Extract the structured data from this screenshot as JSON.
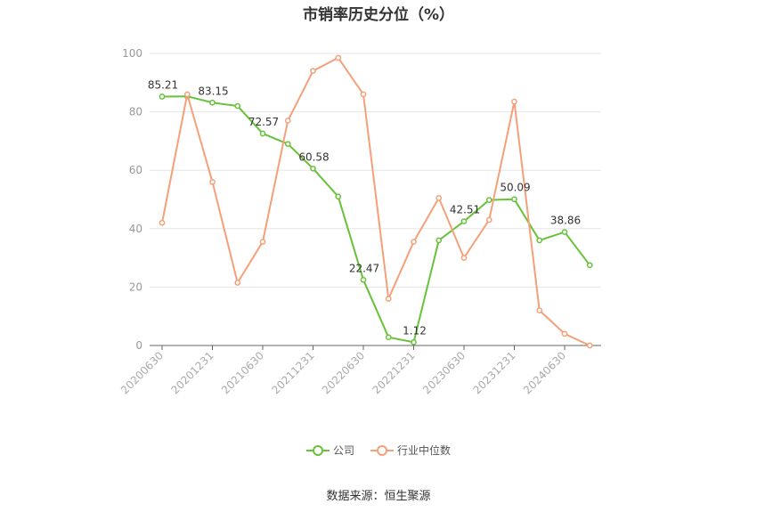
{
  "chart_data": {
    "type": "line",
    "title": "市销率历史分位（%）",
    "xlabel": "",
    "ylabel": "",
    "ylim": [
      0,
      100
    ],
    "yticks": [
      0,
      20,
      40,
      60,
      80,
      100
    ],
    "x": [
      "20200630",
      "20200930",
      "20201231",
      "20210331",
      "20210630",
      "20210930",
      "20211231",
      "20220331",
      "20220630",
      "20220930",
      "20221231",
      "20230331",
      "20230630",
      "20230930",
      "20231231",
      "20240331",
      "20240630",
      "20240930"
    ],
    "xtick_labels": [
      "20200630",
      "20201231",
      "20210630",
      "20211231",
      "20220630",
      "20221231",
      "20230630",
      "20231231",
      "20240630"
    ],
    "grid": true,
    "legend_position": "bottom",
    "series": [
      {
        "name": "公司",
        "color": "#67c23a",
        "values": [
          85.21,
          85.3,
          83.15,
          82.0,
          72.57,
          69.0,
          60.58,
          51.0,
          22.47,
          2.8,
          1.12,
          36.0,
          42.51,
          49.8,
          50.09,
          36.0,
          38.86,
          27.5
        ],
        "data_labels": [
          {
            "index": 0,
            "text": "85.21"
          },
          {
            "index": 2,
            "text": "83.15"
          },
          {
            "index": 4,
            "text": "72.57"
          },
          {
            "index": 6,
            "text": "60.58"
          },
          {
            "index": 8,
            "text": "22.47"
          },
          {
            "index": 10,
            "text": "1.12"
          },
          {
            "index": 12,
            "text": "42.51"
          },
          {
            "index": 14,
            "text": "50.09"
          },
          {
            "index": 16,
            "text": "38.86"
          }
        ]
      },
      {
        "name": "行业中位数",
        "color": "#f4a07a",
        "values": [
          42.0,
          86.0,
          56.0,
          21.5,
          35.5,
          77.0,
          94.0,
          98.5,
          86.0,
          16.0,
          35.5,
          50.5,
          30.0,
          43.0,
          83.5,
          12.0,
          4.0,
          0.0
        ]
      }
    ]
  },
  "source_note": "数据来源：恒生聚源"
}
